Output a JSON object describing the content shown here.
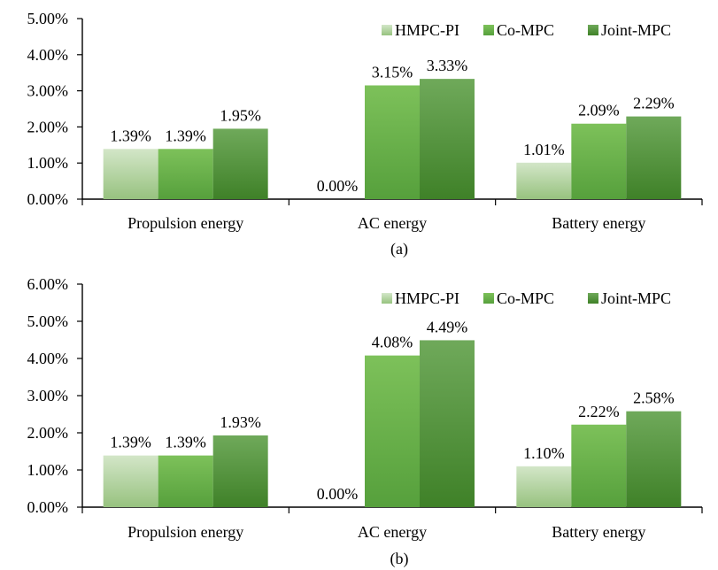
{
  "colors": {
    "HMPC-PI": {
      "light": "#d3e6c8",
      "dark": "#97c27f"
    },
    "Co-MPC": {
      "light": "#7dc15a",
      "dark": "#56a03c"
    },
    "Joint-MPC": {
      "light": "#6fa95a",
      "dark": "#3f8128"
    },
    "axis": "#000000"
  },
  "chart_data": [
    {
      "type": "bar",
      "caption": "(a)",
      "categories": [
        "Propulsion energy",
        "AC energy",
        "Battery energy"
      ],
      "series": [
        {
          "name": "HMPC-PI",
          "values": [
            1.39,
            0.0,
            1.01
          ],
          "labels": [
            "1.39%",
            "0.00%",
            "1.01%"
          ]
        },
        {
          "name": "Co-MPC",
          "values": [
            1.39,
            3.15,
            2.09
          ],
          "labels": [
            "1.39%",
            "3.15%",
            "2.09%"
          ]
        },
        {
          "name": "Joint-MPC",
          "values": [
            1.95,
            3.33,
            2.29
          ],
          "labels": [
            "1.95%",
            "3.33%",
            "2.29%"
          ]
        }
      ],
      "ylim": [
        0,
        5
      ],
      "yticks": [
        "0.00%",
        "1.00%",
        "2.00%",
        "3.00%",
        "4.00%",
        "5.00%"
      ],
      "xlabel": "",
      "ylabel": "",
      "legend": "top-right",
      "grid": false
    },
    {
      "type": "bar",
      "caption": "(b)",
      "categories": [
        "Propulsion energy",
        "AC energy",
        "Battery energy"
      ],
      "series": [
        {
          "name": "HMPC-PI",
          "values": [
            1.39,
            0.0,
            1.1
          ],
          "labels": [
            "1.39%",
            "0.00%",
            "1.10%"
          ]
        },
        {
          "name": "Co-MPC",
          "values": [
            1.39,
            4.08,
            2.22
          ],
          "labels": [
            "1.39%",
            "4.08%",
            "2.22%"
          ]
        },
        {
          "name": "Joint-MPC",
          "values": [
            1.93,
            4.49,
            2.58
          ],
          "labels": [
            "1.93%",
            "4.49%",
            "2.58%"
          ]
        }
      ],
      "ylim": [
        0,
        6
      ],
      "yticks": [
        "0.00%",
        "1.00%",
        "2.00%",
        "3.00%",
        "4.00%",
        "5.00%",
        "6.00%"
      ],
      "xlabel": "",
      "ylabel": "",
      "legend": "top-right",
      "grid": false
    }
  ]
}
